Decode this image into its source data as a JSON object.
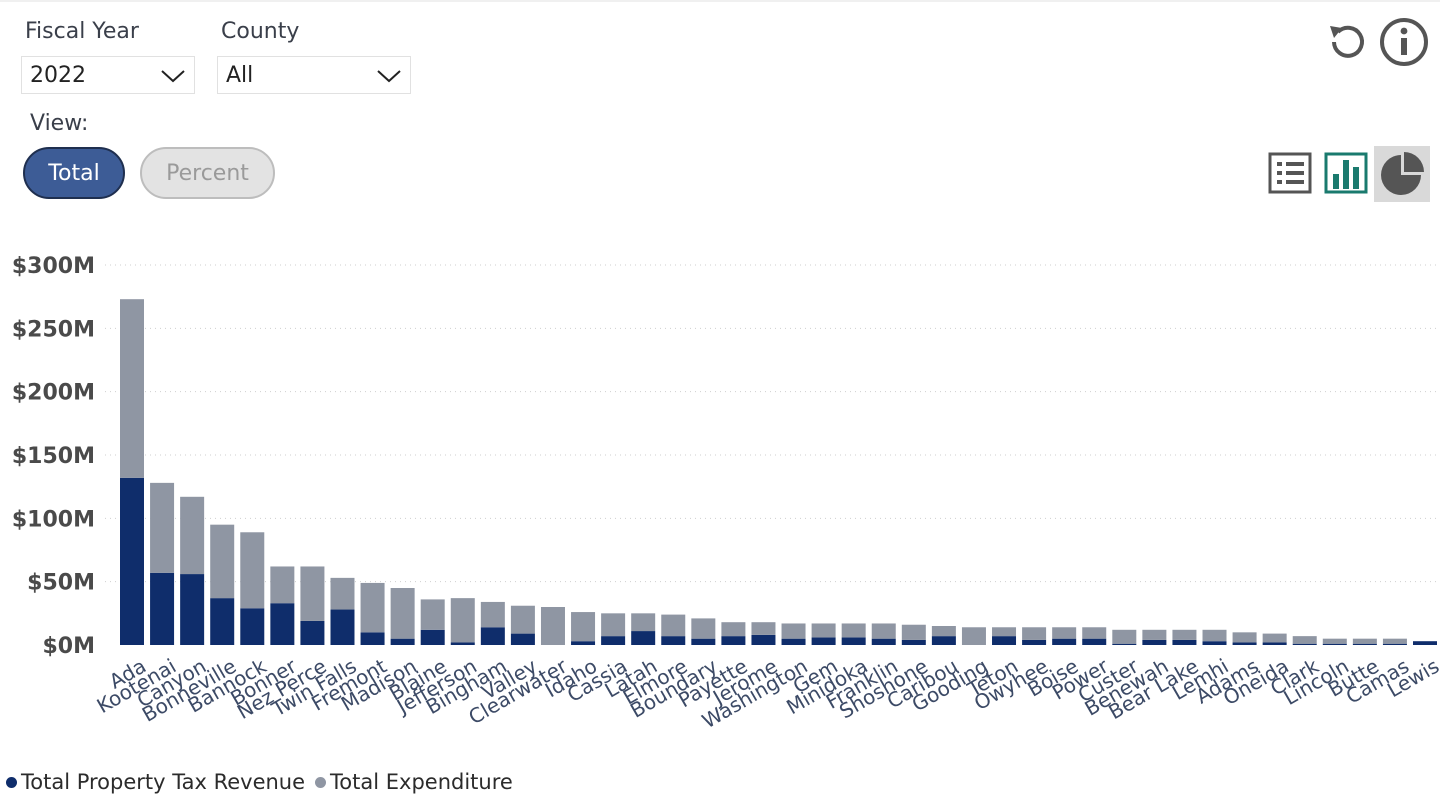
{
  "filters": {
    "fiscal_year_label": "Fiscal Year",
    "fiscal_year_value": "2022",
    "county_label": "County",
    "county_value": "All"
  },
  "view": {
    "label": "View:",
    "total_label": "Total",
    "percent_label": "Percent",
    "selected": "Total"
  },
  "icons": {
    "reset": "reset-icon",
    "info": "info-icon",
    "table_view": "list-view-icon",
    "bar_view": "bar-chart-icon",
    "pie_view": "pie-chart-icon"
  },
  "colors": {
    "revenue": "#0f2d6b",
    "expenditure": "#8f96a3",
    "accent_button": "#3d5c96",
    "bar_icon": "#1a7a6e",
    "icon_gray": "#555555"
  },
  "chart_data": {
    "type": "bar",
    "stacked": true,
    "grid": true,
    "legend_position": "bottom-left",
    "ylim": [
      0,
      300
    ],
    "yticks": [
      0,
      50,
      100,
      150,
      200,
      250,
      300
    ],
    "ytick_labels": [
      "$0M",
      "$50M",
      "$100M",
      "$150M",
      "$200M",
      "$250M",
      "$300M"
    ],
    "categories": [
      "Ada",
      "Kootenai",
      "Canyon",
      "Bonneville",
      "Bannock",
      "Bonner",
      "Nez Perce",
      "Twin Falls",
      "Fremont",
      "Madison",
      "Blaine",
      "Jefferson",
      "Bingham",
      "Valley",
      "Clearwater",
      "Idaho",
      "Cassia",
      "Latah",
      "Elmore",
      "Boundary",
      "Payette",
      "Jerome",
      "Washington",
      "Gem",
      "Minidoka",
      "Franklin",
      "Shoshone",
      "Caribou",
      "Gooding",
      "Teton",
      "Owyhee",
      "Boise",
      "Power",
      "Custer",
      "Benewah",
      "Bear Lake",
      "Lemhi",
      "Adams",
      "Oneida",
      "Clark",
      "Lincoln",
      "Butte",
      "Camas",
      "Lewis"
    ],
    "series": [
      {
        "name": "Total Property Tax Revenue",
        "color": "#0f2d6b",
        "values": [
          132,
          57,
          56,
          37,
          29,
          33,
          19,
          28,
          10,
          5,
          12,
          2,
          14,
          9,
          0,
          3,
          7,
          11,
          7,
          5,
          7,
          8,
          5,
          6,
          6,
          5,
          4,
          7,
          0,
          7,
          4,
          5,
          5,
          1,
          4,
          4,
          3,
          2,
          2,
          1,
          1,
          1,
          1,
          3
        ]
      },
      {
        "name": "Total Expenditure",
        "color": "#8f96a3",
        "values": [
          141,
          71,
          61,
          58,
          60,
          29,
          43,
          25,
          39,
          40,
          24,
          35,
          20,
          22,
          30,
          23,
          18,
          14,
          17,
          16,
          11,
          10,
          12,
          11,
          11,
          12,
          12,
          8,
          14,
          7,
          10,
          9,
          9,
          11,
          8,
          8,
          9,
          8,
          7,
          6,
          4,
          4,
          4,
          0
        ]
      }
    ]
  }
}
